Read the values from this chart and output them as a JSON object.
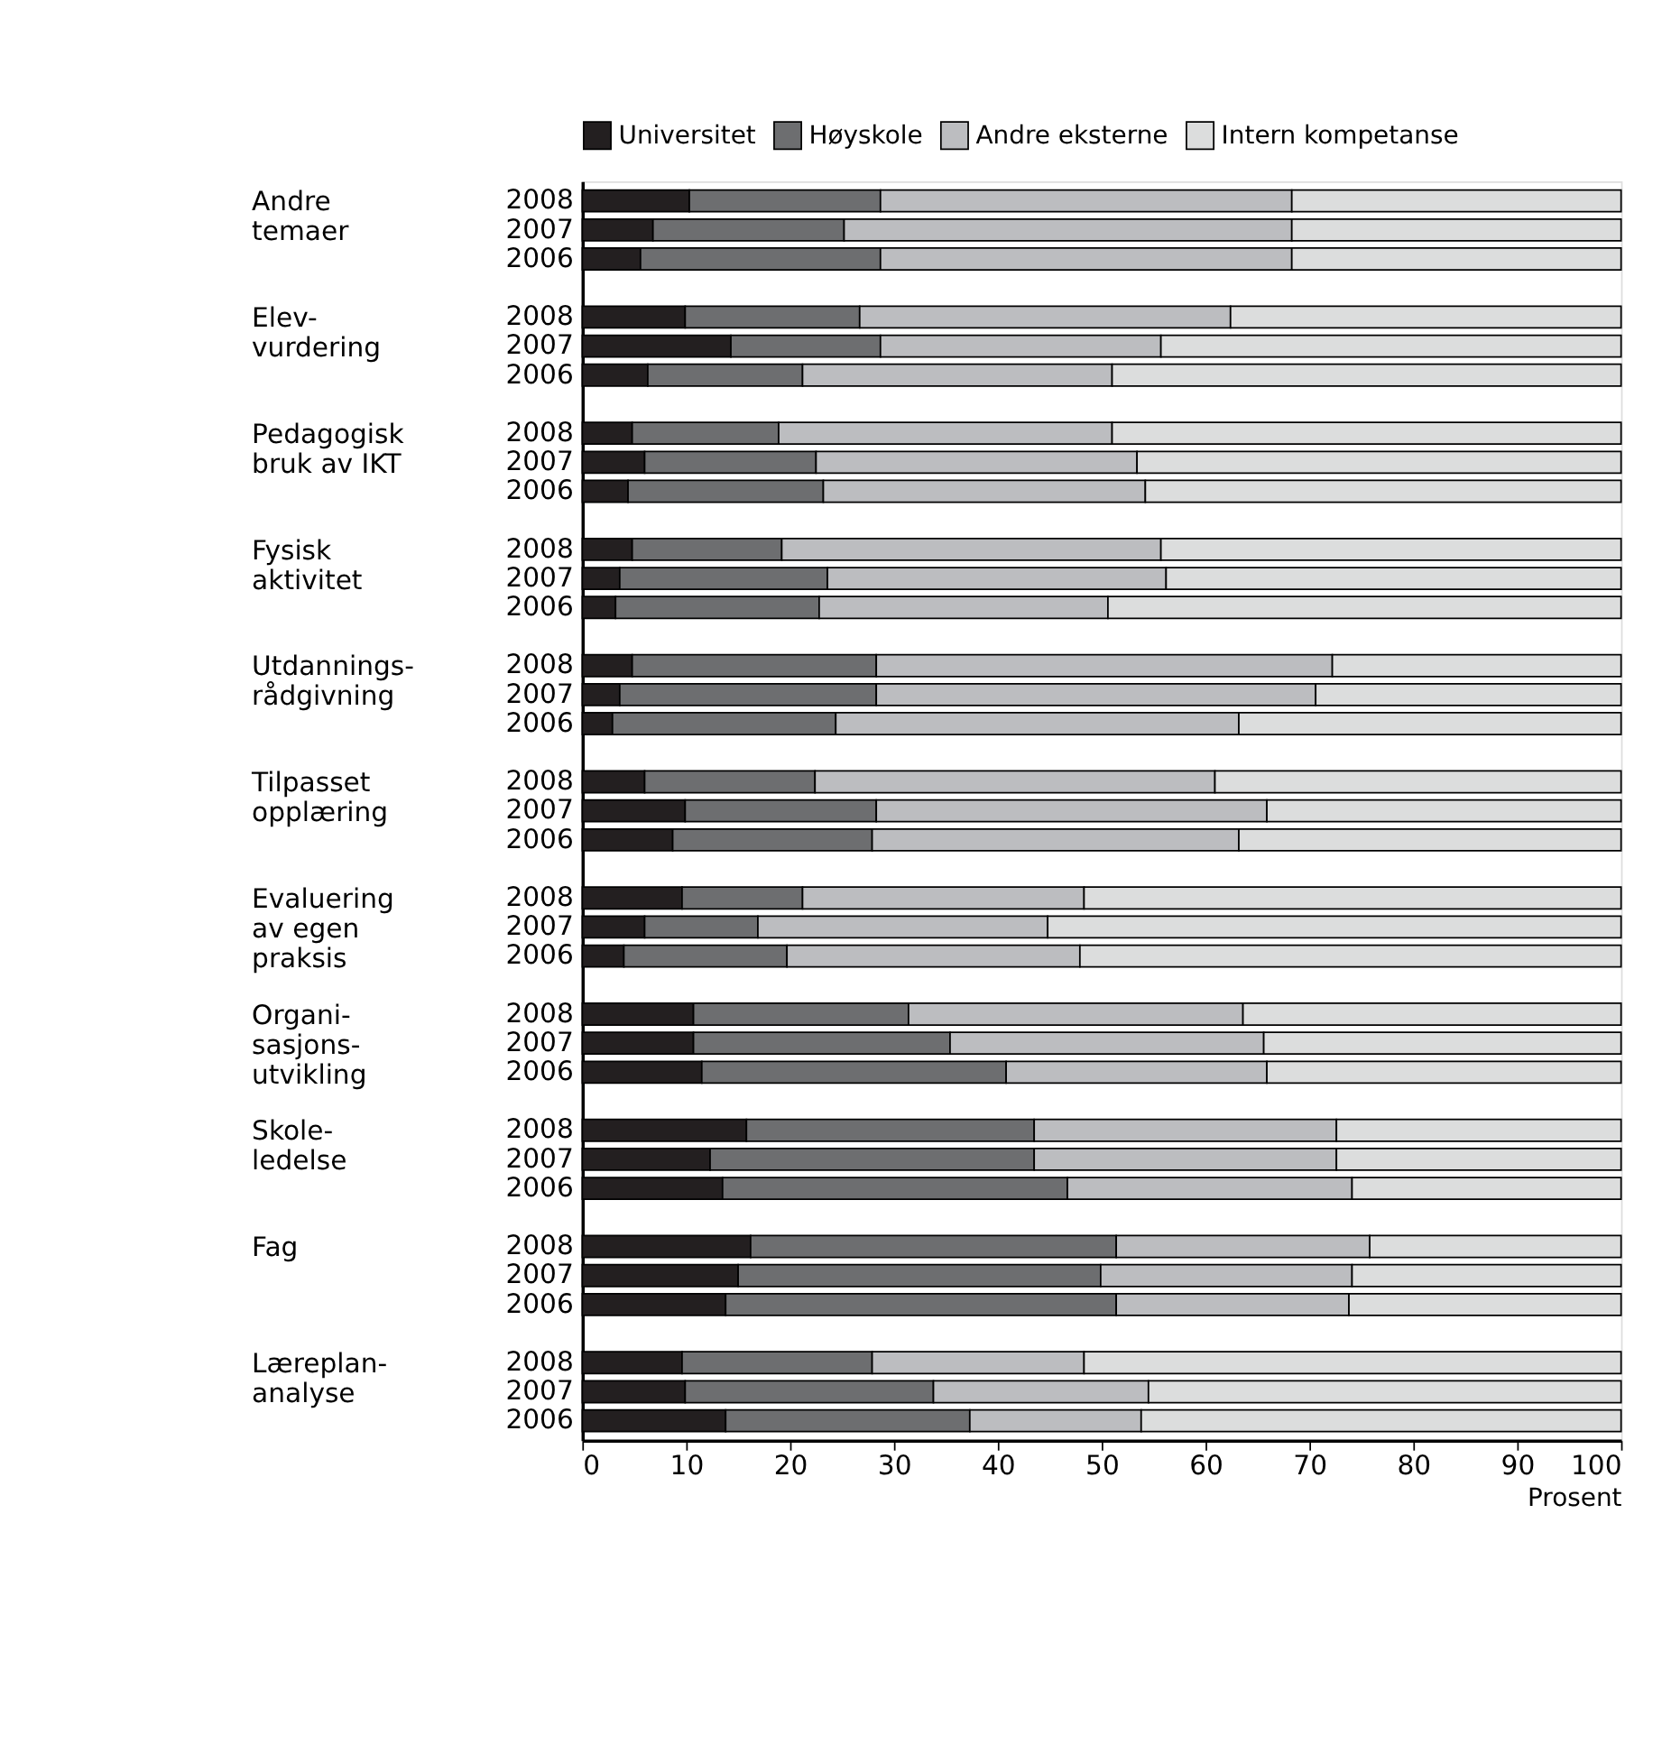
{
  "chart_data": {
    "type": "bar",
    "orientation": "horizontal",
    "stacked": true,
    "xlabel": "Prosent",
    "legend": "top",
    "grid": false,
    "xlim": [
      0,
      100
    ],
    "xticks": [
      0,
      10,
      20,
      30,
      40,
      50,
      60,
      70,
      80,
      90,
      100
    ],
    "categories": [
      "2008",
      "2007",
      "2006",
      "2008",
      "2007",
      "2006",
      "2008",
      "2007",
      "2006",
      "2008",
      "2007",
      "2006",
      "2008",
      "2007",
      "2006",
      "2008",
      "2007",
      "2006",
      "2008",
      "2007",
      "2006",
      "2008",
      "2007",
      "2006",
      "2008",
      "2007",
      "2006",
      "2008",
      "2007",
      "2006",
      "2008",
      "2007",
      "2006"
    ],
    "annotations": [
      "Andre\ntemaer",
      "Elev-\nvurdering",
      "Pedagogisk\nbruk av IKT",
      "Fysisk\naktivitet",
      "Utdannings-\nrådgivning",
      "Tilpasset\nopplæring",
      "Evaluering\nav egen\npraksis",
      "Organi-\nsasjons-\nutvikling",
      "Skole-\nledelse",
      "Fag",
      "Læreplan-\nanalyse"
    ],
    "series": [
      {
        "name": "Universitet",
        "color": "#231f20",
        "values": [
          10.3,
          6.8,
          5.6,
          9.9,
          14.3,
          6.3,
          4.8,
          6.0,
          4.4,
          4.8,
          3.6,
          3.2,
          4.8,
          3.6,
          2.9,
          6.0,
          9.9,
          8.7,
          9.6,
          6.0,
          4.0,
          10.7,
          10.7,
          11.5,
          15.8,
          12.3,
          13.5,
          16.2,
          15.0,
          13.8,
          9.6,
          9.9,
          13.8
        ]
      },
      {
        "name": "Høyskole",
        "color": "#6d6e70",
        "values": [
          18.4,
          18.4,
          23.1,
          16.8,
          14.4,
          14.9,
          14.1,
          16.5,
          18.8,
          14.4,
          20.0,
          19.6,
          23.5,
          24.7,
          21.5,
          16.4,
          18.4,
          19.2,
          11.6,
          10.9,
          15.7,
          20.7,
          24.7,
          29.3,
          27.7,
          31.2,
          33.2,
          35.2,
          34.9,
          37.6,
          18.3,
          23.9,
          23.5
        ]
      },
      {
        "name": "Andre eksterne",
        "color": "#bcbdc0",
        "values": [
          39.6,
          43.1,
          39.6,
          35.7,
          27.0,
          29.8,
          32.1,
          30.9,
          31.0,
          36.5,
          32.6,
          27.8,
          43.9,
          42.3,
          38.8,
          38.5,
          37.6,
          35.3,
          27.1,
          27.9,
          28.2,
          32.2,
          30.2,
          25.1,
          29.1,
          29.1,
          27.4,
          24.4,
          24.2,
          22.4,
          20.4,
          20.7,
          16.5
        ]
      },
      {
        "name": "Intern kompetanse",
        "color": "#dcdddd",
        "values": [
          31.7,
          31.7,
          31.7,
          37.6,
          44.3,
          49.0,
          49.0,
          46.6,
          45.8,
          44.3,
          43.8,
          49.4,
          27.8,
          29.4,
          36.8,
          39.1,
          34.1,
          36.8,
          51.7,
          55.2,
          52.1,
          36.4,
          34.4,
          34.1,
          27.4,
          27.4,
          25.9,
          24.2,
          25.9,
          26.2,
          51.7,
          45.5,
          46.2
        ]
      }
    ]
  }
}
